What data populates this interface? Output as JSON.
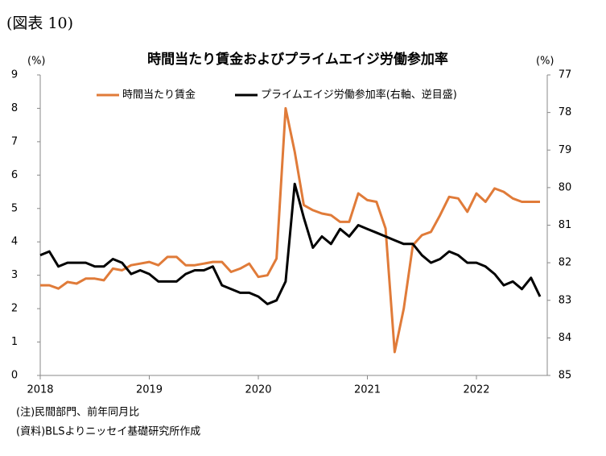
{
  "header": "(図表 10)",
  "chart_data": {
    "type": "line",
    "title": "時間当たり賃金およびプライムエイジ労働参加率",
    "y_unit": "(%)",
    "y2_unit": "(%)",
    "categories": [
      "2018",
      null,
      null,
      null,
      null,
      null,
      null,
      null,
      null,
      null,
      null,
      null,
      "2019",
      null,
      null,
      null,
      null,
      null,
      null,
      null,
      null,
      null,
      null,
      null,
      "2020",
      null,
      null,
      null,
      null,
      null,
      null,
      null,
      null,
      null,
      null,
      null,
      "2021",
      null,
      null,
      null,
      null,
      null,
      null,
      null,
      null,
      null,
      null,
      null,
      "2022",
      null,
      null,
      null,
      null,
      null,
      null,
      null
    ],
    "series": [
      {
        "name": "時間当たり賃金",
        "color": "#e07b39",
        "axis": "y",
        "values": [
          2.7,
          2.7,
          2.6,
          2.8,
          2.75,
          2.9,
          2.9,
          2.85,
          3.2,
          3.15,
          3.3,
          3.35,
          3.4,
          3.3,
          3.55,
          3.55,
          3.3,
          3.3,
          3.35,
          3.4,
          3.4,
          3.1,
          3.2,
          3.35,
          2.95,
          3.0,
          3.5,
          8.0,
          6.7,
          5.1,
          4.95,
          4.85,
          4.8,
          4.6,
          4.6,
          5.45,
          5.25,
          5.2,
          4.4,
          0.7,
          2.0,
          3.9,
          4.2,
          4.3,
          4.8,
          5.35,
          5.3,
          4.9,
          5.45,
          5.2,
          5.6,
          5.5,
          5.3,
          5.2,
          5.2,
          5.2
        ]
      },
      {
        "name": "プライムエイジ労働参加率(右軸、逆目盛)",
        "color": "#000000",
        "axis": "y2",
        "values": [
          81.8,
          81.7,
          82.1,
          82.0,
          82.0,
          82.0,
          82.1,
          82.1,
          81.9,
          82.0,
          82.3,
          82.2,
          82.3,
          82.5,
          82.5,
          82.5,
          82.3,
          82.2,
          82.2,
          82.1,
          82.6,
          82.7,
          82.8,
          82.8,
          82.9,
          83.1,
          83.0,
          82.5,
          79.9,
          80.8,
          81.6,
          81.3,
          81.5,
          81.1,
          81.3,
          81.0,
          81.1,
          81.2,
          81.3,
          81.4,
          81.5,
          81.5,
          81.8,
          82.0,
          81.9,
          81.7,
          81.8,
          82.0,
          82.0,
          82.1,
          82.3,
          82.6,
          82.5,
          82.7,
          82.4,
          82.9
        ]
      }
    ],
    "ylim": [
      0,
      9
    ],
    "yticks": [
      0,
      1,
      2,
      3,
      4,
      5,
      6,
      7,
      8,
      9
    ],
    "y2lim": [
      85,
      77
    ],
    "y2ticks": [
      85,
      84,
      83,
      82,
      81,
      80,
      79,
      78,
      77
    ],
    "legend": "top",
    "grid": false
  },
  "notes": [
    "(注)民間部門、前年同月比",
    "(資料)BLSよりニッセイ基礎研究所作成"
  ]
}
